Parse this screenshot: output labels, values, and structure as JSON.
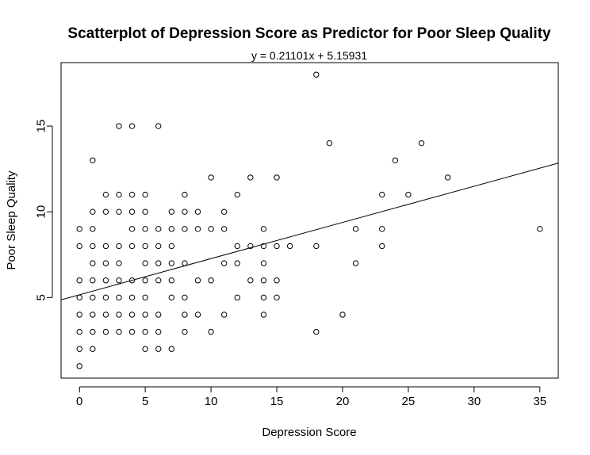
{
  "chart_data": {
    "type": "scatter",
    "title": "Scatterplot of Depression Score as Predictor for Poor Sleep Quality",
    "subtitle": "y = 0.21101x + 5.15931",
    "xlabel": "Depression Score",
    "ylabel": "Poor Sleep Quality",
    "xlim": [
      -1.4,
      36.4
    ],
    "ylim": [
      0.3,
      18.7
    ],
    "x_ticks": [
      0,
      5,
      10,
      15,
      20,
      25,
      30,
      35
    ],
    "y_ticks": [
      5,
      10,
      15
    ],
    "regression": {
      "slope": 0.21101,
      "intercept": 5.15931
    },
    "points": [
      [
        0,
        1
      ],
      [
        0,
        2
      ],
      [
        0,
        3
      ],
      [
        0,
        4
      ],
      [
        0,
        5
      ],
      [
        0,
        6
      ],
      [
        0,
        8
      ],
      [
        0,
        9
      ],
      [
        1,
        2
      ],
      [
        1,
        3
      ],
      [
        1,
        4
      ],
      [
        1,
        5
      ],
      [
        1,
        6
      ],
      [
        1,
        7
      ],
      [
        1,
        8
      ],
      [
        1,
        9
      ],
      [
        1,
        10
      ],
      [
        1,
        13
      ],
      [
        2,
        3
      ],
      [
        2,
        4
      ],
      [
        2,
        5
      ],
      [
        2,
        6
      ],
      [
        2,
        7
      ],
      [
        2,
        8
      ],
      [
        2,
        10
      ],
      [
        2,
        11
      ],
      [
        3,
        3
      ],
      [
        3,
        4
      ],
      [
        3,
        5
      ],
      [
        3,
        6
      ],
      [
        3,
        7
      ],
      [
        3,
        8
      ],
      [
        3,
        10
      ],
      [
        3,
        11
      ],
      [
        3,
        15
      ],
      [
        4,
        3
      ],
      [
        4,
        4
      ],
      [
        4,
        5
      ],
      [
        4,
        6
      ],
      [
        4,
        8
      ],
      [
        4,
        9
      ],
      [
        4,
        10
      ],
      [
        4,
        11
      ],
      [
        4,
        15
      ],
      [
        5,
        2
      ],
      [
        5,
        3
      ],
      [
        5,
        4
      ],
      [
        5,
        5
      ],
      [
        5,
        6
      ],
      [
        5,
        7
      ],
      [
        5,
        8
      ],
      [
        5,
        9
      ],
      [
        5,
        10
      ],
      [
        5,
        11
      ],
      [
        6,
        2
      ],
      [
        6,
        3
      ],
      [
        6,
        4
      ],
      [
        6,
        6
      ],
      [
        6,
        7
      ],
      [
        6,
        8
      ],
      [
        6,
        9
      ],
      [
        6,
        15
      ],
      [
        7,
        2
      ],
      [
        7,
        5
      ],
      [
        7,
        6
      ],
      [
        7,
        7
      ],
      [
        7,
        8
      ],
      [
        7,
        9
      ],
      [
        7,
        10
      ],
      [
        8,
        3
      ],
      [
        8,
        4
      ],
      [
        8,
        5
      ],
      [
        8,
        7
      ],
      [
        8,
        9
      ],
      [
        8,
        10
      ],
      [
        8,
        11
      ],
      [
        9,
        4
      ],
      [
        9,
        6
      ],
      [
        9,
        9
      ],
      [
        9,
        10
      ],
      [
        10,
        3
      ],
      [
        10,
        6
      ],
      [
        10,
        9
      ],
      [
        10,
        12
      ],
      [
        11,
        4
      ],
      [
        11,
        7
      ],
      [
        11,
        9
      ],
      [
        11,
        10
      ],
      [
        12,
        5
      ],
      [
        12,
        7
      ],
      [
        12,
        8
      ],
      [
        12,
        11
      ],
      [
        13,
        6
      ],
      [
        13,
        8
      ],
      [
        13,
        12
      ],
      [
        14,
        4
      ],
      [
        14,
        5
      ],
      [
        14,
        6
      ],
      [
        14,
        7
      ],
      [
        14,
        8
      ],
      [
        14,
        9
      ],
      [
        15,
        5
      ],
      [
        15,
        6
      ],
      [
        15,
        8
      ],
      [
        15,
        12
      ],
      [
        16,
        8
      ],
      [
        18,
        3
      ],
      [
        18,
        8
      ],
      [
        18,
        18
      ],
      [
        19,
        14
      ],
      [
        20,
        4
      ],
      [
        21,
        7
      ],
      [
        21,
        9
      ],
      [
        23,
        8
      ],
      [
        23,
        9
      ],
      [
        23,
        11
      ],
      [
        24,
        13
      ],
      [
        25,
        11
      ],
      [
        26,
        14
      ],
      [
        28,
        12
      ],
      [
        35,
        9
      ]
    ]
  }
}
